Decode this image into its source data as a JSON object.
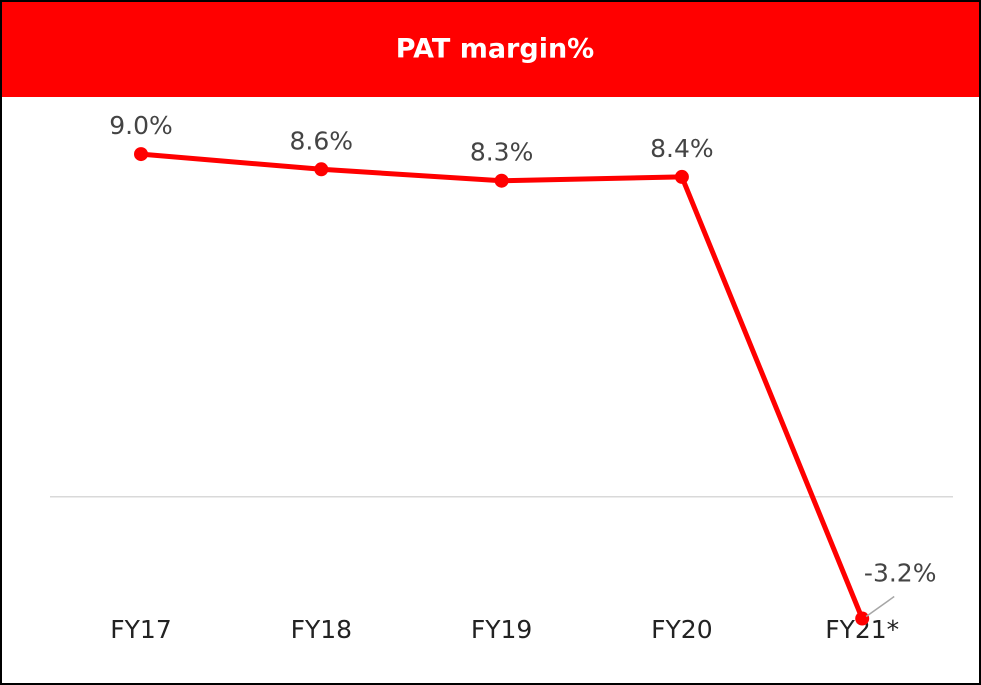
{
  "chart_data": {
    "type": "line",
    "title": "PAT margin%",
    "categories": [
      "FY17",
      "FY18",
      "FY19",
      "FY20",
      "FY21*"
    ],
    "values": [
      9.0,
      8.6,
      8.3,
      8.4,
      -3.2
    ],
    "value_labels": [
      "9.0%",
      "8.6%",
      "8.3%",
      "8.4%",
      "-3.2%"
    ],
    "color": "#ff0000",
    "ylim": [
      -4,
      10
    ]
  }
}
